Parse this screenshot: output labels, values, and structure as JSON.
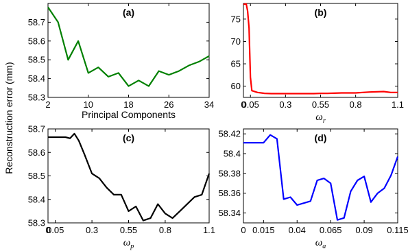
{
  "ylabel_shared": "Reconstruction error (mm)",
  "chart_data": [
    {
      "id": "a",
      "type": "line",
      "panel_label": "(a)",
      "xlabel": "Principal Components",
      "xlim": [
        2,
        34
      ],
      "ylim": [
        58.3,
        58.8
      ],
      "xticks": [
        2,
        10,
        18,
        26,
        34
      ],
      "xtick_labels": [
        "2",
        "10",
        "18",
        "26",
        "34"
      ],
      "yticks": [
        58.3,
        58.4,
        58.5,
        58.6,
        58.7
      ],
      "ytick_labels": [
        "58.3",
        "58.4",
        "58.5",
        "58.6",
        "58.7"
      ],
      "color": "#008000",
      "x": [
        2,
        4,
        6,
        8,
        10,
        12,
        14,
        16,
        18,
        20,
        22,
        24,
        26,
        28,
        30,
        32,
        34
      ],
      "y": [
        58.78,
        58.7,
        58.5,
        58.6,
        58.43,
        58.46,
        58.41,
        58.43,
        58.36,
        58.39,
        58.36,
        58.44,
        58.42,
        58.44,
        58.47,
        58.49,
        58.52
      ]
    },
    {
      "id": "b",
      "type": "line",
      "panel_label": "(b)",
      "xlabel_main": "ω",
      "xlabel_sub": "r",
      "xlim": [
        0,
        1.1
      ],
      "ylim": [
        57.5,
        78.5
      ],
      "xticks": [
        0,
        0.05,
        0.3,
        0.55,
        0.8,
        1.1
      ],
      "xtick_labels": [
        "0",
        "0.05",
        "0.3",
        "0.55",
        "0.8",
        "1.1"
      ],
      "yticks": [
        60,
        65,
        70,
        75
      ],
      "ytick_labels": [
        "60",
        "65",
        "70",
        "75"
      ],
      "color": "#ff0000",
      "x": [
        0,
        0.02,
        0.03,
        0.04,
        0.05,
        0.06,
        0.1,
        0.15,
        0.2,
        0.3,
        0.4,
        0.5,
        0.55,
        0.6,
        0.7,
        0.8,
        0.9,
        1.0,
        1.05,
        1.1
      ],
      "y": [
        78.3,
        78.4,
        76.8,
        73.0,
        62.0,
        59.0,
        58.6,
        58.4,
        58.35,
        58.35,
        58.35,
        58.35,
        58.4,
        58.4,
        58.5,
        58.5,
        58.7,
        58.8,
        58.6,
        58.6
      ]
    },
    {
      "id": "c",
      "type": "line",
      "panel_label": "(c)",
      "xlabel_main": "ω",
      "xlabel_sub": "p",
      "xlim": [
        0,
        1.1
      ],
      "ylim": [
        58.3,
        58.7
      ],
      "xticks": [
        0,
        0.05,
        0.3,
        0.55,
        0.8,
        1.1
      ],
      "xtick_labels": [
        "0",
        "0.05",
        "0.3",
        "0.55",
        "0.8",
        "1.1"
      ],
      "yticks": [
        58.3,
        58.4,
        58.5,
        58.6,
        58.7
      ],
      "ytick_labels": [
        "58.3",
        "58.4",
        "58.5",
        "58.6",
        "58.7"
      ],
      "color": "#000000",
      "x": [
        0,
        0.05,
        0.1,
        0.12,
        0.15,
        0.18,
        0.21,
        0.25,
        0.3,
        0.35,
        0.4,
        0.45,
        0.5,
        0.55,
        0.6,
        0.65,
        0.7,
        0.75,
        0.8,
        0.85,
        0.9,
        0.95,
        1.0,
        1.05,
        1.1
      ],
      "y": [
        58.665,
        58.665,
        58.665,
        58.665,
        58.66,
        58.68,
        58.65,
        58.59,
        58.51,
        58.49,
        58.45,
        58.42,
        58.42,
        58.35,
        58.37,
        58.31,
        58.32,
        58.38,
        58.34,
        58.32,
        58.35,
        58.38,
        58.41,
        58.42,
        58.51
      ]
    },
    {
      "id": "d",
      "type": "line",
      "panel_label": "(d)",
      "xlabel_main": "ω",
      "xlabel_sub": "a",
      "xlim": [
        0,
        0.115
      ],
      "ylim": [
        58.33,
        58.425
      ],
      "xticks": [
        0,
        0.015,
        0.04,
        0.065,
        0.09,
        0.115
      ],
      "xtick_labels": [
        "0",
        "0.015",
        "0.04",
        "0.065",
        "0.09",
        "0.115"
      ],
      "yticks": [
        58.34,
        58.36,
        58.38,
        58.4,
        58.42
      ],
      "ytick_labels": [
        "58.34",
        "58.36",
        "58.38",
        "58.4",
        "58.42"
      ],
      "color": "#0000ff",
      "x": [
        0,
        0.005,
        0.01,
        0.015,
        0.02,
        0.025,
        0.03,
        0.035,
        0.04,
        0.045,
        0.05,
        0.055,
        0.06,
        0.065,
        0.07,
        0.075,
        0.08,
        0.085,
        0.09,
        0.095,
        0.1,
        0.105,
        0.11,
        0.115
      ],
      "y": [
        58.411,
        58.411,
        58.411,
        58.411,
        58.419,
        58.415,
        58.354,
        58.356,
        58.348,
        58.35,
        58.352,
        58.373,
        58.375,
        58.37,
        58.333,
        58.335,
        58.362,
        58.373,
        58.377,
        58.351,
        58.36,
        58.365,
        58.378,
        58.397
      ]
    }
  ]
}
